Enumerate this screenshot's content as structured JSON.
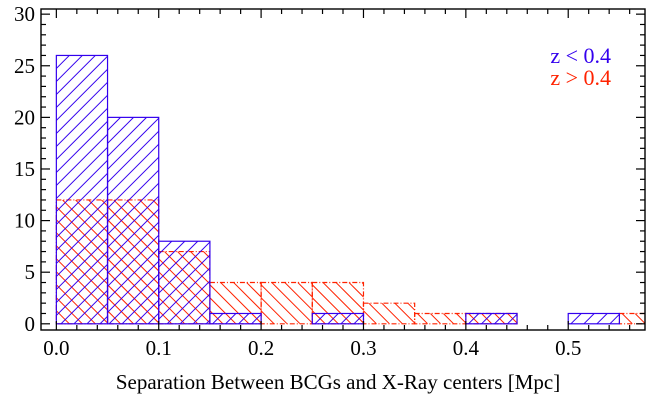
{
  "chart_data": {
    "type": "histogram",
    "xlabel": "Separation Between BCGs and X-Ray centers [Mpc]",
    "ylabel": "",
    "xlim": [
      -0.015,
      0.575
    ],
    "ylim": [
      -0.6,
      30.5
    ],
    "xticks": [
      0.0,
      0.1,
      0.2,
      0.3,
      0.4,
      0.5
    ],
    "xtick_labels": [
      "0.0",
      "0.1",
      "0.2",
      "0.3",
      "0.4",
      "0.5"
    ],
    "yticks": [
      0,
      5,
      10,
      15,
      20,
      25,
      30
    ],
    "ytick_labels": [
      "0",
      "5",
      "10",
      "15",
      "20",
      "25",
      "30"
    ],
    "bin_width": 0.05,
    "series": [
      {
        "name": "z < 0.4",
        "color": "#3300ee",
        "line_style": "solid",
        "hatch": "forward",
        "bin_edges": [
          0.0,
          0.05,
          0.1,
          0.15,
          0.2,
          0.25,
          0.3,
          0.35,
          0.4,
          0.45,
          0.5,
          0.55
        ],
        "counts": [
          26,
          20,
          8,
          1,
          0,
          1,
          0,
          0,
          1,
          0,
          1
        ]
      },
      {
        "name": "z > 0.4",
        "color": "#ff2200",
        "line_style": "dashdot",
        "hatch": "backward",
        "bin_edges": [
          0.0,
          0.05,
          0.1,
          0.15,
          0.2,
          0.25,
          0.3,
          0.35,
          0.4,
          0.45,
          0.5,
          0.55,
          0.6
        ],
        "counts": [
          12,
          12,
          7,
          4,
          4,
          4,
          2,
          1,
          1,
          0,
          0,
          1
        ]
      }
    ],
    "legend": {
      "placement": "top-right",
      "entries": [
        "z < 0.4",
        "z > 0.4"
      ]
    },
    "grid": false
  }
}
